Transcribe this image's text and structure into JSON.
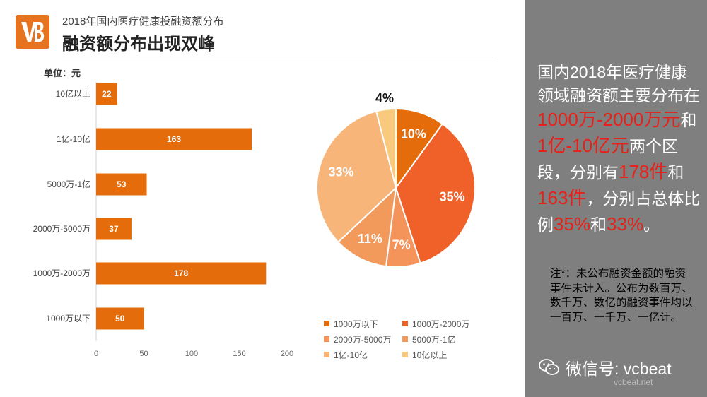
{
  "header": {
    "subtitle": "2018年国内医疗健康投融资额分布",
    "title": "融资额分布出现双峰"
  },
  "colors": {
    "bar": "#E46C0A",
    "sidebar": "#7f7f7f",
    "highlight": "#E8201A",
    "logo": "#E8731E"
  },
  "chart_data": [
    {
      "type": "bar",
      "orientation": "horizontal",
      "unit_label": "单位：元",
      "categories": [
        "10亿以上",
        "1亿-10亿",
        "5000万-1亿",
        "2000万-5000万",
        "1000万-2000万",
        "1000万以下"
      ],
      "values": [
        22,
        163,
        53,
        37,
        178,
        50
      ],
      "xticks": [
        0,
        50,
        100,
        150,
        200
      ],
      "xlim": [
        0,
        200
      ],
      "grid": false
    },
    {
      "type": "pie",
      "slices": [
        {
          "label": "1000万以下",
          "percent": 10,
          "value_label": "10%",
          "color": "#E46C0A"
        },
        {
          "label": "1000万-2000万",
          "percent": 35,
          "value_label": "35%",
          "color": "#F0612A"
        },
        {
          "label": "2000万-5000万",
          "percent": 7,
          "value_label": "7%",
          "color": "#F4935A"
        },
        {
          "label": "5000万-1亿",
          "percent": 11,
          "value_label": "11%",
          "color": "#F29A5B"
        },
        {
          "label": "1亿-10亿",
          "percent": 33,
          "value_label": "33%",
          "color": "#F8B57A"
        },
        {
          "label": "10亿以上",
          "percent": 4,
          "value_label": "4%",
          "color": "#F9C97E"
        }
      ],
      "legend_placement": "bottom"
    }
  ],
  "sidebar": {
    "summary": {
      "p1": "国内2018年医疗健康领域融资额主要分布在",
      "hl1": "1000万-2000万元",
      "p2": "和",
      "hl2": "1亿-10亿元",
      "p3": "两个区段，分别有",
      "hl3": "178件",
      "p4": "和",
      "hl4": "163件",
      "p5": "，分别占总体比例",
      "hl5": "35%",
      "p6": "和",
      "hl6": "33%",
      "p7": "。"
    },
    "note": "注*：未公布融资金额的融资事件未计入。公布为数百万、数千万、数亿的融资事件均以一百万、一千万、一亿计。",
    "wechat_label": "微信号: vcbeat",
    "watermark": "vcbeat.net",
    "wechat_icon": "wechat-icon"
  }
}
